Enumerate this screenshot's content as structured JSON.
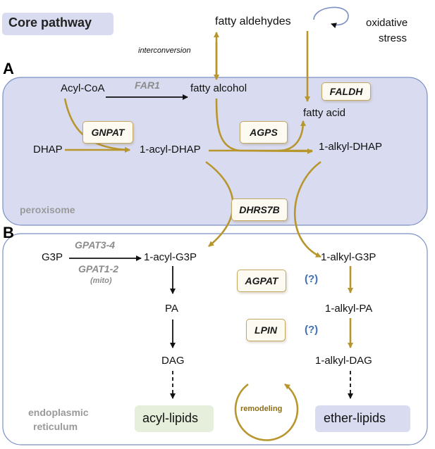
{
  "title": "Core pathway",
  "panels": {
    "a": "A",
    "b": "B"
  },
  "compartments": {
    "peroxisome": "peroxisome",
    "er_line1": "endoplasmic",
    "er_line2": "reticulum"
  },
  "metabolites": {
    "fatty_aldehydes": "fatty aldehydes",
    "oxidative_stress_1": "oxidative",
    "oxidative_stress_2": "stress",
    "acyl_coa": "Acyl-CoA",
    "fatty_alcohol": "fatty alcohol",
    "fatty_acid": "fatty acid",
    "dhap": "DHAP",
    "acyl_dhap": "1-acyl-DHAP",
    "alkyl_dhap": "1-alkyl-DHAP",
    "g3p": "G3P",
    "acyl_g3p": "1-acyl-G3P",
    "alkyl_g3p": "1-alkyl-G3P",
    "pa": "PA",
    "alkyl_pa": "1-alkyl-PA",
    "dag": "DAG",
    "alkyl_dag": "1-alkyl-DAG",
    "acyl_lipids": "acyl-lipids",
    "ether_lipids": "ether-lipids",
    "remodeling": "remodeling"
  },
  "enzymes": {
    "far1": "FAR1",
    "faldh": "FALDH",
    "gnpat": "GNPAT",
    "agps": "AGPS",
    "dhrs7b": "DHRS7B",
    "gpat34": "GPAT3-4",
    "gpat12": "GPAT1-2",
    "mito": "(mito)",
    "agpat": "AGPAT",
    "lpin": "LPIN"
  },
  "notes": {
    "interconversion": "interconversion",
    "unknown_1": "(?)",
    "unknown_2": "(?)"
  },
  "colors": {
    "peroxisome_fill": "#d9dcf1",
    "er_fill": "#ffffff",
    "region_border": "#7a8fc4",
    "gold": "#b8962e",
    "title_bg": "#d9dcf1",
    "acyl_bg": "#e6efdc",
    "ether_bg": "#d9dcf1"
  }
}
